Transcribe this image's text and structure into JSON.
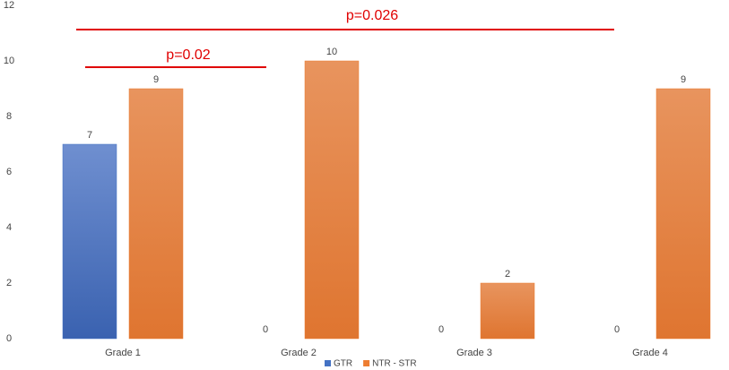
{
  "chart_data": {
    "type": "bar",
    "categories": [
      "Grade 1",
      "Grade 2",
      "Grade 3",
      "Grade 4"
    ],
    "series": [
      {
        "name": "GTR",
        "color": "#4472c4",
        "values": [
          7,
          0,
          0,
          0
        ]
      },
      {
        "name": "NTR - STR",
        "color": "#ed7d31",
        "values": [
          9,
          10,
          2,
          9
        ]
      }
    ],
    "ylim": [
      0,
      12
    ],
    "yticks": [
      0,
      2,
      4,
      6,
      8,
      10,
      12
    ],
    "grid": false,
    "annotations": [
      "p=0.026",
      "p=0.02"
    ],
    "legend": "bottom"
  }
}
